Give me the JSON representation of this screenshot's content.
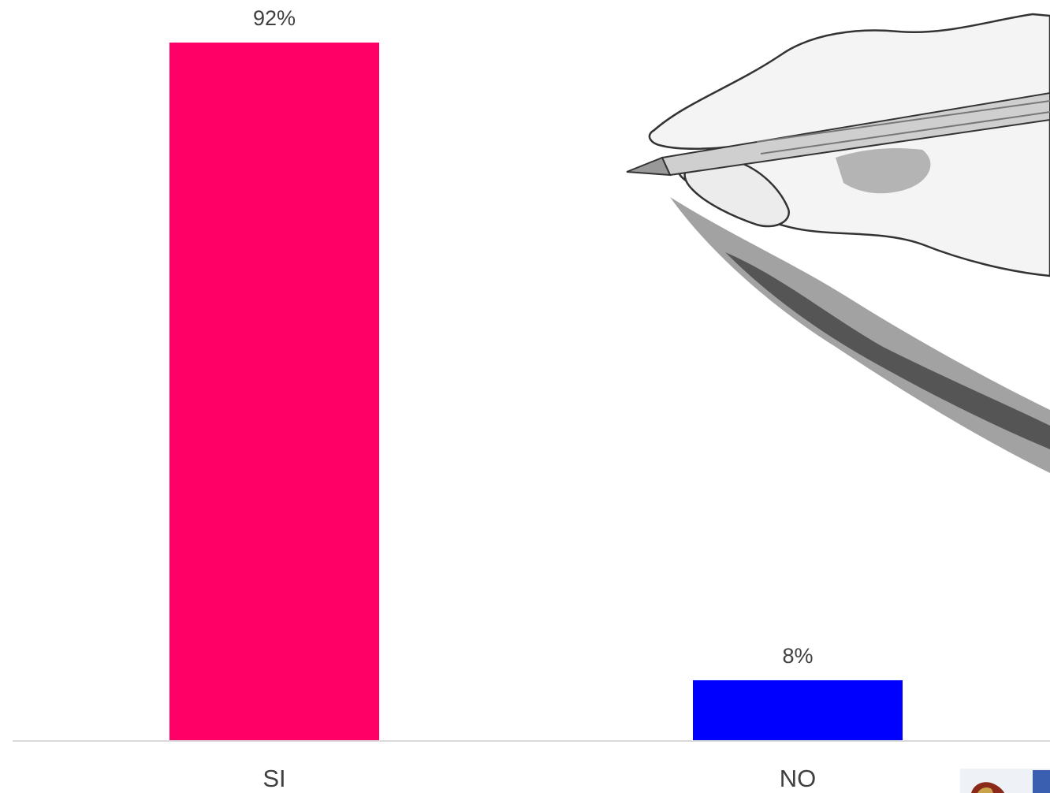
{
  "chart_data": {
    "type": "bar",
    "categories": [
      "SI",
      "NO"
    ],
    "values": [
      92,
      8
    ],
    "value_labels": [
      "92%",
      "8%"
    ],
    "title": "",
    "xlabel": "",
    "ylabel": "",
    "ylim": [
      0,
      92
    ],
    "grid": false,
    "legend": "none",
    "colors": [
      "#ff0066",
      "#0000ff"
    ],
    "baseline_color": "#d9d9d9"
  },
  "decorations": {
    "illustration_icon": "hand-drawing-with-pencil-icon",
    "logo_icon": "institution-logo-icon"
  }
}
